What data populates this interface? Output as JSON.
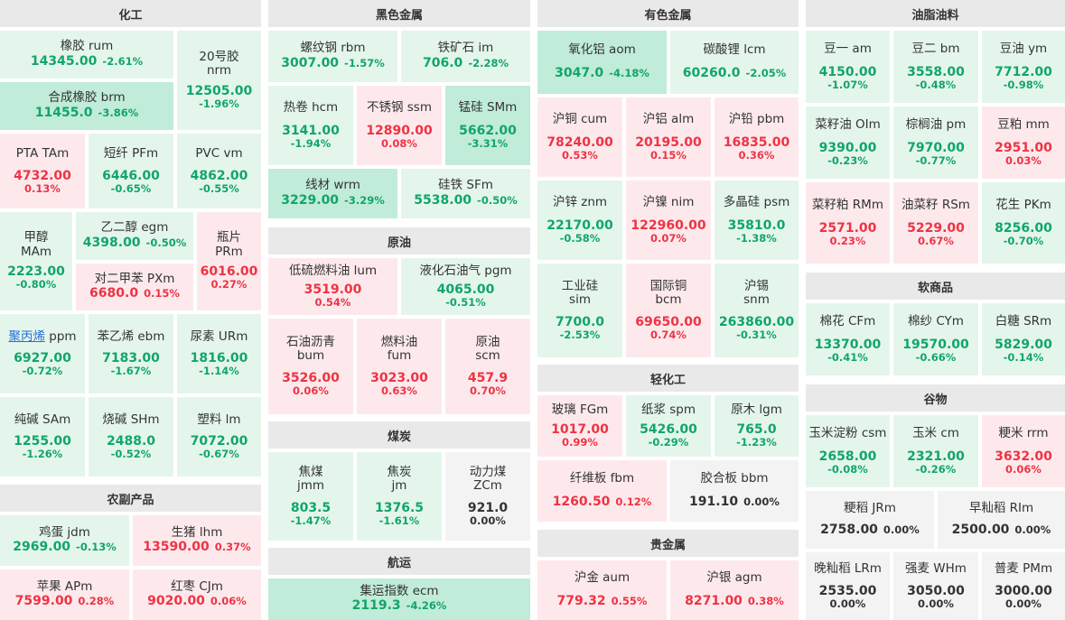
{
  "sections": {
    "s_chem": "化工",
    "s_ferrous": "黑色金属",
    "s_nonferrous": "有色金属",
    "s_oils": "油脂油料",
    "s_crude": "原油",
    "s_soft": "软商品",
    "s_coal": "煤炭",
    "s_light": "轻化工",
    "s_agri": "农副产品",
    "s_grain": "谷物",
    "s_precious": "贵金属",
    "s_ship": "航运"
  },
  "tiles": {
    "rum": {
      "name": "橡胶 rum",
      "price": "14345.00",
      "change": "-2.61%"
    },
    "nrm": {
      "name1": "20号胶",
      "name2": "nrm",
      "price": "12505.00",
      "change": "-1.96%"
    },
    "brm": {
      "name": "合成橡胶 brm",
      "price": "11455.0",
      "change": "-3.86%"
    },
    "tam": {
      "name": "PTA TAm",
      "price": "4732.00",
      "change": "0.13%"
    },
    "pfm": {
      "name": "短纤 PFm",
      "price": "6446.00",
      "change": "-0.65%"
    },
    "vm": {
      "name": "PVC vm",
      "price": "4862.00",
      "change": "-0.55%"
    },
    "mam": {
      "name1": "甲醇",
      "name2": "MAm",
      "price": "2223.00",
      "change": "-0.80%"
    },
    "egm": {
      "name": "乙二醇 egm",
      "price": "4398.00",
      "change": "-0.50%"
    },
    "prm": {
      "name1": "瓶片",
      "name2": "PRm",
      "price": "6016.00",
      "change": "0.27%"
    },
    "pxm": {
      "name": "对二甲苯 PXm",
      "price": "6680.0",
      "change": "0.15%"
    },
    "ppm": {
      "name_link": "聚丙烯",
      "name_rest": "ppm",
      "price": "6927.00",
      "change": "-0.72%"
    },
    "ebm": {
      "name": "苯乙烯 ebm",
      "price": "7183.00",
      "change": "-1.67%"
    },
    "urm": {
      "name": "尿素 URm",
      "price": "1816.00",
      "change": "-1.14%"
    },
    "sam": {
      "name": "纯碱 SAm",
      "price": "1255.00",
      "change": "-1.26%"
    },
    "shm": {
      "name": "烧碱 SHm",
      "price": "2488.0",
      "change": "-0.52%"
    },
    "lm": {
      "name": "塑料 lm",
      "price": "7072.00",
      "change": "-0.67%"
    },
    "jdm": {
      "name": "鸡蛋 jdm",
      "price": "2969.00",
      "change": "-0.13%"
    },
    "lhm": {
      "name": "生猪 lhm",
      "price": "13590.00",
      "change": "0.37%"
    },
    "apm": {
      "name": "苹果 APm",
      "price": "7599.00",
      "change": "0.28%"
    },
    "cjm": {
      "name": "红枣 CJm",
      "price": "9020.00",
      "change": "0.06%"
    },
    "rbm": {
      "name": "螺纹钢 rbm",
      "price": "3007.00",
      "change": "-1.57%"
    },
    "im": {
      "name": "铁矿石 im",
      "price": "706.0",
      "change": "-2.28%"
    },
    "hcm": {
      "name": "热卷 hcm",
      "price": "3141.00",
      "change": "-1.94%"
    },
    "ssm": {
      "name": "不锈钢 ssm",
      "price": "12890.00",
      "change": "0.08%"
    },
    "smm": {
      "name": "锰硅 SMm",
      "price": "5662.00",
      "change": "-3.31%"
    },
    "wrm": {
      "name": "线材 wrm",
      "price": "3229.00",
      "change": "-3.29%"
    },
    "sfm": {
      "name": "硅铁 SFm",
      "price": "5538.00",
      "change": "-0.50%"
    },
    "lum": {
      "name": "低硫燃料油 lum",
      "price": "3519.00",
      "change": "0.54%"
    },
    "pgm": {
      "name": "液化石油气 pgm",
      "price": "4065.00",
      "change": "-0.51%"
    },
    "bum": {
      "name1": "石油沥青",
      "name2": "bum",
      "price": "3526.00",
      "change": "0.06%"
    },
    "fum": {
      "name1": "燃料油",
      "name2": "fum",
      "price": "3023.00",
      "change": "0.63%"
    },
    "scm": {
      "name1": "原油",
      "name2": "scm",
      "price": "457.9",
      "change": "0.70%"
    },
    "jmm": {
      "name1": "焦煤",
      "name2": "jmm",
      "price": "803.5",
      "change": "-1.47%"
    },
    "jm": {
      "name1": "焦炭",
      "name2": "jm",
      "price": "1376.5",
      "change": "-1.61%"
    },
    "zcm": {
      "name1": "动力煤",
      "name2": "ZCm",
      "price": "921.0",
      "change": "0.00%"
    },
    "ecm": {
      "name": "集运指数 ecm",
      "price": "2119.3",
      "change": "-4.26%"
    },
    "aom": {
      "name": "氧化铝 aom",
      "price": "3047.0",
      "change": "-4.18%"
    },
    "lcm": {
      "name": "碳酸锂 lcm",
      "price": "60260.0",
      "change": "-2.05%"
    },
    "cum": {
      "name": "沪铜 cum",
      "price": "78240.00",
      "change": "0.53%"
    },
    "alm": {
      "name": "沪铝 alm",
      "price": "20195.00",
      "change": "0.15%"
    },
    "pbm": {
      "name": "沪铅 pbm",
      "price": "16835.00",
      "change": "0.36%"
    },
    "znm": {
      "name": "沪锌 znm",
      "price": "22170.00",
      "change": "-0.58%"
    },
    "nim": {
      "name": "沪镍 nim",
      "price": "122960.00",
      "change": "0.07%"
    },
    "psm": {
      "name": "多晶硅 psm",
      "price": "35810.0",
      "change": "-1.38%"
    },
    "sim": {
      "name1": "工业硅",
      "name2": "sim",
      "price": "7700.0",
      "change": "-2.53%"
    },
    "bcm": {
      "name1": "国际铜",
      "name2": "bcm",
      "price": "69650.00",
      "change": "0.74%"
    },
    "snm": {
      "name1": "沪锡",
      "name2": "snm",
      "price": "263860.00",
      "change": "-0.31%"
    },
    "fgm": {
      "name": "玻璃 FGm",
      "price": "1017.00",
      "change": "0.99%"
    },
    "spm": {
      "name": "纸浆 spm",
      "price": "5426.00",
      "change": "-0.29%"
    },
    "lgm": {
      "name": "原木 lgm",
      "price": "765.0",
      "change": "-1.23%"
    },
    "fbm": {
      "name": "纤维板 fbm",
      "price": "1260.50",
      "change": "0.12%"
    },
    "bbm": {
      "name": "胶合板 bbm",
      "price": "191.10",
      "change": "0.00%"
    },
    "aum": {
      "name": "沪金 aum",
      "price": "779.32",
      "change": "0.55%"
    },
    "agm": {
      "name": "沪银 agm",
      "price": "8271.00",
      "change": "0.38%"
    },
    "am": {
      "name": "豆一 am",
      "price": "4150.00",
      "change": "-1.07%"
    },
    "bm": {
      "name": "豆二 bm",
      "price": "3558.00",
      "change": "-0.48%"
    },
    "ym": {
      "name": "豆油 ym",
      "price": "7712.00",
      "change": "-0.98%"
    },
    "oim": {
      "name": "菜籽油 OIm",
      "price": "9390.00",
      "change": "-0.23%"
    },
    "pm": {
      "name": "棕榈油 pm",
      "price": "7970.00",
      "change": "-0.77%"
    },
    "mm": {
      "name": "豆粕 mm",
      "price": "2951.00",
      "change": "0.03%"
    },
    "rmm": {
      "name": "菜籽粕 RMm",
      "price": "2571.00",
      "change": "0.23%"
    },
    "rsm": {
      "name": "油菜籽 RSm",
      "price": "5229.00",
      "change": "0.67%"
    },
    "pkm": {
      "name": "花生 PKm",
      "price": "8256.00",
      "change": "-0.70%"
    },
    "cfm": {
      "name": "棉花 CFm",
      "price": "13370.00",
      "change": "-0.41%"
    },
    "cym": {
      "name": "棉纱 CYm",
      "price": "19570.00",
      "change": "-0.66%"
    },
    "srm": {
      "name": "白糖 SRm",
      "price": "5829.00",
      "change": "-0.14%"
    },
    "csm": {
      "name": "玉米淀粉 csm",
      "price": "2658.00",
      "change": "-0.08%"
    },
    "cm": {
      "name": "玉米 cm",
      "price": "2321.00",
      "change": "-0.26%"
    },
    "rrm": {
      "name": "粳米 rrm",
      "price": "3632.00",
      "change": "0.06%"
    },
    "jrm": {
      "name": "粳稻 JRm",
      "price": "2758.00",
      "change": "0.00%"
    },
    "rim": {
      "name": "早籼稻 RIm",
      "price": "2500.00",
      "change": "0.00%"
    },
    "lrm": {
      "name": "晚籼稻 LRm",
      "price": "2535.00",
      "change": "0.00%"
    },
    "whm": {
      "name": "强麦 WHm",
      "price": "3050.00",
      "change": "0.00%"
    },
    "pmm": {
      "name": "普麦 PMm",
      "price": "3000.00",
      "change": "0.00%"
    }
  },
  "colors": {
    "up": "#ee3344",
    "down": "#11a56a",
    "flat": "#333333",
    "link": "#2a6fd6"
  }
}
